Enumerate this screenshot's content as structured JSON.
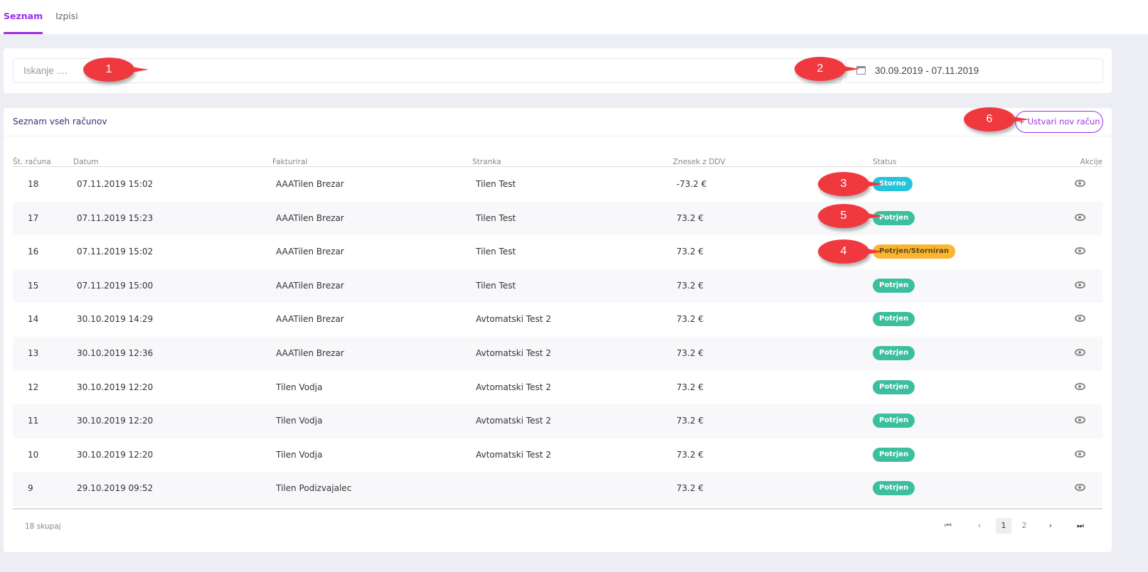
{
  "tabs": [
    {
      "label": "Seznam",
      "active": true
    },
    {
      "label": "Izpisi",
      "active": false
    }
  ],
  "search": {
    "placeholder": "Iskanje ...."
  },
  "date_range": {
    "value": "30.09.2019 - 07.11.2019",
    "icon": "calendar-icon"
  },
  "table_card": {
    "title": "Seznam vseh računov",
    "new_button": "+ Ustvari nov račun"
  },
  "columns": [
    "Št. računa",
    "Datum",
    "Fakturiral",
    "Stranka",
    "Znesek z DDV",
    "Status",
    "Akcije"
  ],
  "rows": [
    {
      "no": "18",
      "date": "07.11.2019 15:02",
      "issuer": "AAATilen Brezar",
      "client": "Tilen Test",
      "amount": "-73.2 €",
      "status": "Storno"
    },
    {
      "no": "17",
      "date": "07.11.2019 15:23",
      "issuer": "AAATilen Brezar",
      "client": "Tilen Test",
      "amount": "73.2 €",
      "status": "Potrjen"
    },
    {
      "no": "16",
      "date": "07.11.2019 15:02",
      "issuer": "AAATilen Brezar",
      "client": "Tilen Test",
      "amount": "73.2 €",
      "status": "Potrjen/Storniran"
    },
    {
      "no": "15",
      "date": "07.11.2019 15:00",
      "issuer": "AAATilen Brezar",
      "client": "Tilen Test",
      "amount": "73.2 €",
      "status": "Potrjen"
    },
    {
      "no": "14",
      "date": "30.10.2019 14:29",
      "issuer": "AAATilen Brezar",
      "client": "Avtomatski Test 2",
      "amount": "73.2 €",
      "status": "Potrjen"
    },
    {
      "no": "13",
      "date": "30.10.2019 12:36",
      "issuer": "AAATilen Brezar",
      "client": "Avtomatski Test 2",
      "amount": "73.2 €",
      "status": "Potrjen"
    },
    {
      "no": "12",
      "date": "30.10.2019 12:20",
      "issuer": "Tilen Vodja",
      "client": "Avtomatski Test 2",
      "amount": "73.2 €",
      "status": "Potrjen"
    },
    {
      "no": "11",
      "date": "30.10.2019 12:20",
      "issuer": "Tilen Vodja",
      "client": "Avtomatski Test 2",
      "amount": "73.2 €",
      "status": "Potrjen"
    },
    {
      "no": "10",
      "date": "30.10.2019 12:20",
      "issuer": "Tilen Vodja",
      "client": "Avtomatski Test 2",
      "amount": "73.2 €",
      "status": "Potrjen"
    },
    {
      "no": "9",
      "date": "29.10.2019 09:52",
      "issuer": "Tilen Podizvajalec",
      "client": "",
      "amount": "73.2 €",
      "status": "Potrjen"
    }
  ],
  "status_colors": {
    "Storno": "#26c3d9",
    "Potrjen": "#3cbf9e",
    "Potrjen/Storniran": "#fbb52f"
  },
  "footer": {
    "total": "18 skupaj",
    "pages": [
      "1",
      "2"
    ],
    "current_page": "1"
  },
  "callouts": [
    "1",
    "2",
    "3",
    "4",
    "5",
    "6"
  ],
  "accent": "#9b30e8"
}
